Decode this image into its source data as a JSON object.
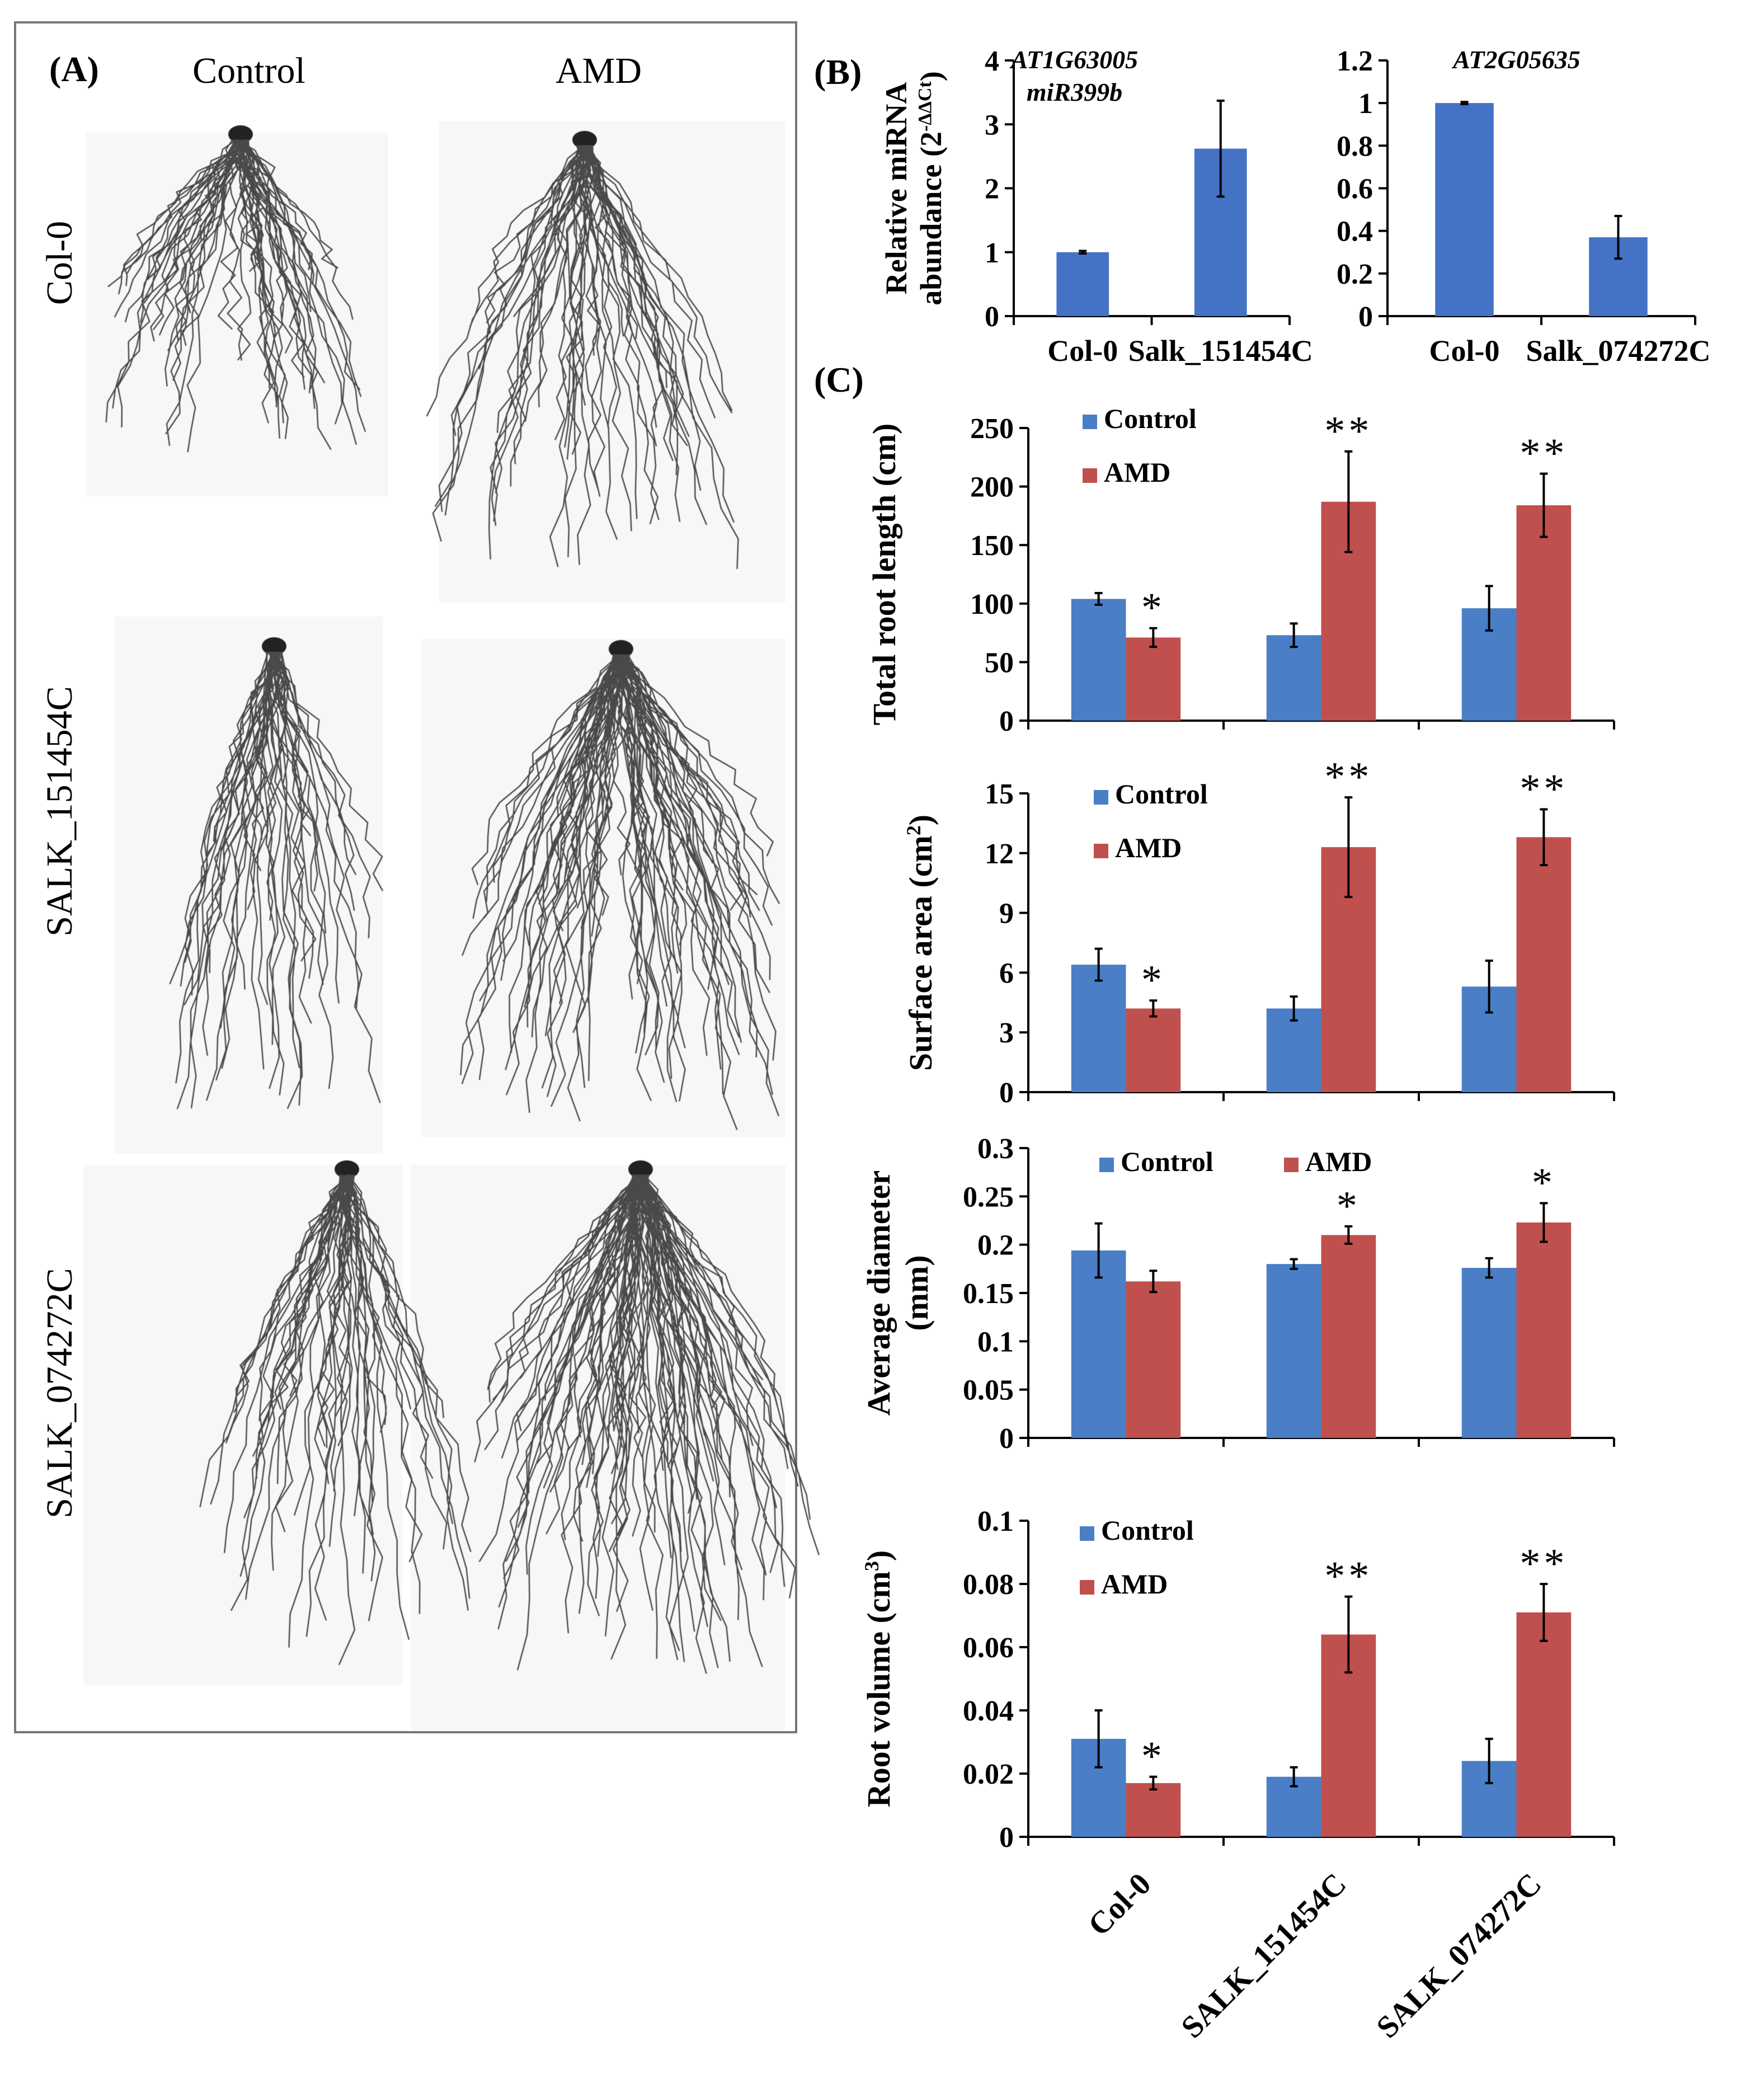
{
  "panel_a": {
    "label": "(A)",
    "col_headers": [
      "Control",
      "AMD"
    ],
    "row_labels": [
      "Col-0",
      "SALK_151454C",
      "SALK_074272C"
    ]
  },
  "panel_b": {
    "label": "(B)"
  },
  "panel_c": {
    "label": "(C)"
  },
  "colors": {
    "control": "#4A7EC6",
    "amd": "#C0504D",
    "b_bar": "#4472C4"
  },
  "chart_data": [
    {
      "id": "b1",
      "type": "bar",
      "panel": "B",
      "title": "AT1G63005",
      "subtitle": "miR399b",
      "ylabel": "Relative miRNA",
      "ylabel2": "abundance (2",
      "ylabel_sup": "-ΔΔCt",
      "ylabel_end": ")",
      "categories": [
        "Col-0",
        "Salk_151454C"
      ],
      "values": [
        1.0,
        2.62
      ],
      "errors": [
        0.02,
        0.75
      ],
      "ylim": [
        0,
        4
      ],
      "yticks": [
        "0",
        "1",
        "2",
        "3",
        "4"
      ]
    },
    {
      "id": "b2",
      "type": "bar",
      "panel": "B",
      "title": "AT2G05635",
      "categories": [
        "Col-0",
        "Salk_074272C"
      ],
      "values": [
        1.0,
        0.37
      ],
      "errors": [
        0.005,
        0.1
      ],
      "ylim": [
        0,
        1.2
      ],
      "yticks": [
        "0",
        "0.2",
        "0.4",
        "0.6",
        "0.8",
        "1",
        "1.2"
      ]
    },
    {
      "id": "c1",
      "type": "bar",
      "panel": "C",
      "ylabel": "Total root length (cm)",
      "categories": [
        "Col-0",
        "SALK_151454C",
        "SALK_074272C"
      ],
      "series": [
        {
          "name": "Control",
          "values": [
            104,
            73,
            96
          ],
          "errors": [
            5,
            10,
            19
          ]
        },
        {
          "name": "AMD",
          "values": [
            71,
            187,
            184
          ],
          "errors": [
            8,
            43,
            27
          ]
        }
      ],
      "significance": [
        "*",
        "**",
        "**"
      ],
      "ylim": [
        0,
        250
      ],
      "yticks": [
        "0",
        "50",
        "100",
        "150",
        "200",
        "250"
      ],
      "legend": "top-left, stacked"
    },
    {
      "id": "c2",
      "type": "bar",
      "panel": "C",
      "ylabel": "Surface area (cm",
      "ylabel_sup": "2",
      "ylabel_end": ")",
      "categories": [
        "Col-0",
        "SALK_151454C",
        "SALK_074272C"
      ],
      "series": [
        {
          "name": "Control",
          "values": [
            6.4,
            4.2,
            5.3
          ],
          "errors": [
            0.8,
            0.6,
            1.3
          ]
        },
        {
          "name": "AMD",
          "values": [
            4.2,
            12.3,
            12.8
          ],
          "errors": [
            0.4,
            2.5,
            1.4
          ]
        }
      ],
      "significance": [
        "*",
        "**",
        "**"
      ],
      "ylim": [
        0,
        15
      ],
      "yticks": [
        "0",
        "3",
        "6",
        "9",
        "12",
        "15"
      ],
      "legend": "top-left, stacked"
    },
    {
      "id": "c3",
      "type": "bar",
      "panel": "C",
      "ylabel": "Average diameter",
      "ylabel2": "(mm)",
      "categories": [
        "Col-0",
        "SALK_151454C",
        "SALK_074272C"
      ],
      "series": [
        {
          "name": "Control",
          "values": [
            0.194,
            0.18,
            0.176
          ],
          "errors": [
            0.028,
            0.005,
            0.01
          ]
        },
        {
          "name": "AMD",
          "values": [
            0.162,
            0.21,
            0.223
          ],
          "errors": [
            0.011,
            0.009,
            0.02
          ]
        }
      ],
      "significance": [
        "",
        "*",
        "*"
      ],
      "ylim": [
        0,
        0.3
      ],
      "yticks": [
        "0",
        "0.05",
        "0.1",
        "0.15",
        "0.2",
        "0.25",
        "0.3"
      ],
      "legend": "top, horizontal"
    },
    {
      "id": "c4",
      "type": "bar",
      "panel": "C",
      "ylabel": "Root volume (cm",
      "ylabel_sup": "3",
      "ylabel_end": ")",
      "categories": [
        "Col-0",
        "SALK_151454C",
        "SALK_074272C"
      ],
      "series": [
        {
          "name": "Control",
          "values": [
            0.031,
            0.019,
            0.024
          ],
          "errors": [
            0.009,
            0.003,
            0.007
          ]
        },
        {
          "name": "AMD",
          "values": [
            0.017,
            0.064,
            0.071
          ],
          "errors": [
            0.002,
            0.012,
            0.009
          ]
        }
      ],
      "significance": [
        "*",
        "**",
        "**"
      ],
      "ylim": [
        0,
        0.1
      ],
      "yticks": [
        "0",
        "0.02",
        "0.04",
        "0.06",
        "0.08",
        "0.1"
      ],
      "legend": "top-left, stacked",
      "show_category_labels": true
    }
  ]
}
